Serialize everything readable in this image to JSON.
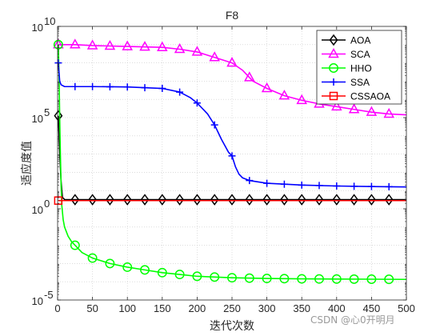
{
  "chart_data": {
    "type": "line",
    "title": "F8",
    "xlabel": "迭代次数",
    "ylabel": "适应度值",
    "xlim": [
      0,
      500
    ],
    "ylim_log10": [
      -5,
      10
    ],
    "yscale": "log",
    "grid": true,
    "legend_position": "top-right",
    "x_ticks": [
      "0",
      "50",
      "100",
      "150",
      "200",
      "250",
      "300",
      "350",
      "400",
      "450",
      "500"
    ],
    "y_ticks": [
      {
        "base": "10",
        "exp": "-5"
      },
      {
        "base": "10",
        "exp": "0"
      },
      {
        "base": "10",
        "exp": "5"
      },
      {
        "base": "10",
        "exp": "10"
      }
    ],
    "series": [
      {
        "name": "AOA",
        "color": "#000000",
        "marker": "diamond",
        "x": [
          1,
          3,
          5,
          7,
          10,
          15,
          20,
          30,
          50,
          100,
          200,
          300,
          400,
          500
        ],
        "log10_y": [
          5.1,
          3.0,
          1.5,
          0.62,
          0.51,
          0.5,
          0.5,
          0.5,
          0.5,
          0.5,
          0.5,
          0.5,
          0.5,
          0.5
        ],
        "marker_x": [
          1,
          25,
          50,
          75,
          100,
          125,
          150,
          175,
          200,
          225,
          250,
          275,
          300,
          325,
          350,
          375,
          400,
          425,
          450,
          475
        ]
      },
      {
        "name": "SCA",
        "color": "#ff00ff",
        "marker": "triangle",
        "x": [
          1,
          25,
          50,
          100,
          150,
          175,
          200,
          225,
          250,
          265,
          280,
          300,
          325,
          350,
          375,
          400,
          425,
          450,
          475,
          500
        ],
        "log10_y": [
          9.0,
          9.0,
          8.95,
          8.9,
          8.85,
          8.75,
          8.6,
          8.3,
          8.0,
          7.6,
          7.0,
          6.6,
          6.2,
          5.95,
          5.75,
          5.6,
          5.45,
          5.3,
          5.2,
          5.15
        ],
        "marker_x": [
          1,
          25,
          50,
          75,
          100,
          125,
          150,
          175,
          200,
          225,
          250,
          275,
          300,
          325,
          350,
          375,
          400,
          425,
          450,
          475
        ]
      },
      {
        "name": "HHO",
        "color": "#00ff00",
        "marker": "circle",
        "x": [
          1,
          2,
          3,
          4,
          5,
          6,
          8,
          10,
          15,
          20,
          25,
          35,
          50,
          75,
          100,
          125,
          150,
          175,
          200,
          250,
          300,
          350,
          400,
          450,
          500
        ],
        "log10_y": [
          9.0,
          7.5,
          5.0,
          3.0,
          1.3,
          0.2,
          -0.6,
          -1.0,
          -1.5,
          -1.8,
          -2.0,
          -2.4,
          -2.7,
          -3.0,
          -3.2,
          -3.35,
          -3.5,
          -3.6,
          -3.7,
          -3.78,
          -3.82,
          -3.84,
          -3.85,
          -3.86,
          -3.87
        ],
        "marker_x": [
          1,
          25,
          50,
          75,
          100,
          125,
          150,
          175,
          200,
          225,
          250,
          275,
          300,
          325,
          350,
          375,
          400,
          425,
          450,
          475
        ]
      },
      {
        "name": "SSA",
        "color": "#0000ff",
        "marker": "plus",
        "x": [
          1,
          3,
          5,
          10,
          25,
          50,
          100,
          150,
          175,
          190,
          200,
          215,
          225,
          235,
          245,
          250,
          255,
          260,
          265,
          275,
          300,
          350,
          400,
          450,
          500
        ],
        "log10_y": [
          8.0,
          7.0,
          6.8,
          6.7,
          6.7,
          6.7,
          6.68,
          6.6,
          6.4,
          6.1,
          5.8,
          5.2,
          4.6,
          3.8,
          3.1,
          2.9,
          2.3,
          1.9,
          1.7,
          1.55,
          1.4,
          1.3,
          1.25,
          1.22,
          1.2
        ],
        "marker_x": [
          1,
          25,
          50,
          75,
          100,
          125,
          150,
          175,
          200,
          225,
          250,
          275,
          300,
          325,
          350,
          375,
          400,
          425,
          450,
          475
        ]
      },
      {
        "name": "CSSAOA",
        "color": "#ff0000",
        "marker": "square",
        "x": [
          1,
          500
        ],
        "log10_y": [
          0.45,
          0.45
        ],
        "marker_x": [
          1
        ]
      }
    ]
  },
  "watermark": "CSDN @心0开明月"
}
